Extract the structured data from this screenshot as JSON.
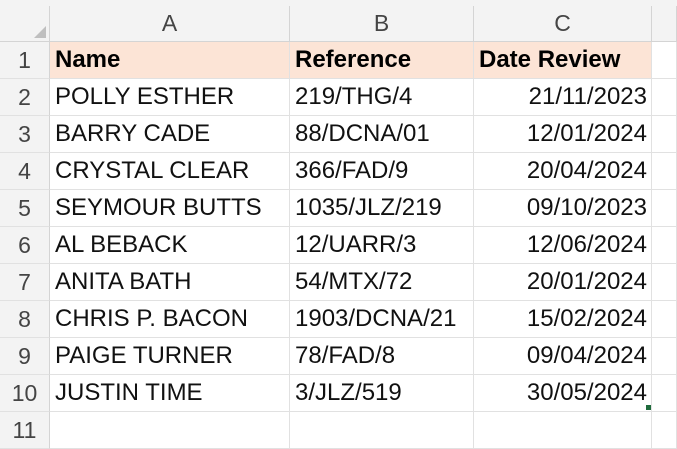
{
  "columns": [
    "A",
    "B",
    "C"
  ],
  "rows": [
    "1",
    "2",
    "3",
    "4",
    "5",
    "6",
    "7",
    "8",
    "9",
    "10",
    "11"
  ],
  "header": {
    "name": "Name",
    "reference": "Reference",
    "date_review": "Date Review"
  },
  "data": [
    {
      "name": "POLLY ESTHER",
      "reference": "219/THG/4",
      "date": "21/11/2023"
    },
    {
      "name": "BARRY CADE",
      "reference": "88/DCNA/01",
      "date": "12/01/2024"
    },
    {
      "name": "CRYSTAL CLEAR",
      "reference": "366/FAD/9",
      "date": "20/04/2024"
    },
    {
      "name": "SEYMOUR BUTTS",
      "reference": "1035/JLZ/219",
      "date": "09/10/2023"
    },
    {
      "name": "AL BEBACK",
      "reference": "12/UARR/3",
      "date": "12/06/2024"
    },
    {
      "name": "ANITA BATH",
      "reference": "54/MTX/72",
      "date": "20/01/2024"
    },
    {
      "name": "CHRIS P. BACON",
      "reference": "1903/DCNA/21",
      "date": "15/02/2024"
    },
    {
      "name": "PAIGE TURNER",
      "reference": "78/FAD/8",
      "date": "09/04/2024"
    },
    {
      "name": "JUSTIN TIME",
      "reference": "3/JLZ/519",
      "date": "30/05/2024"
    }
  ],
  "colors": {
    "header_fill": "#fce4d6",
    "header_bg": "#f3f3f3",
    "gridline": "#e1e1e1",
    "selection": "#1f6b3c"
  }
}
